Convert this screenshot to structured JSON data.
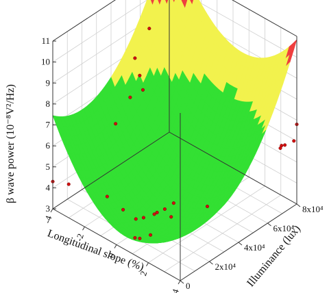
{
  "chart_data": {
    "type": "surface3d",
    "xlabel": "Longitudinal slope (%)",
    "ylabel": "Illuminance (lux)",
    "zlabel": "β wave power  (10⁻⁸V²/Hz)",
    "x_ticks": [
      "-4",
      "-2",
      "0",
      "2",
      "4"
    ],
    "y_ticks": [
      "0",
      "2x10⁴",
      "4x10⁴",
      "6x10⁴",
      "8x10⁴"
    ],
    "z_ticks": [
      "3",
      "4",
      "5",
      "6",
      "7",
      "8",
      "9",
      "10",
      "11"
    ],
    "xlim": [
      -4,
      4
    ],
    "ylim": [
      0,
      80000
    ],
    "zlim": [
      3,
      11
    ],
    "grid": true,
    "surface_colors": {
      "low": "#33e033",
      "mid": "#f2f24d",
      "high": "#ef3f3f"
    },
    "color_bands": [
      {
        "range": [
          3,
          7.3
        ],
        "color": "low"
      },
      {
        "range": [
          7.3,
          10
        ],
        "color": "mid"
      },
      {
        "range": [
          10,
          11
        ],
        "color": "high"
      }
    ],
    "surface_model": {
      "z_min": 3.0,
      "x_center": 0.6,
      "x_coef": 0.18,
      "y_center": 20000,
      "y_coef": 1.6e-09
    },
    "points": [
      {
        "x": -4,
        "y": 0,
        "z": 4.3
      },
      {
        "x": -3,
        "y": 0,
        "z": 4.6
      },
      {
        "x": -1.6,
        "y": 40000,
        "z": 10.8
      },
      {
        "x": -2.5,
        "y": 40000,
        "z": 9.0
      },
      {
        "x": -2.2,
        "y": 40000,
        "z": 8.3
      },
      {
        "x": -2.0,
        "y": 40000,
        "z": 7.7
      },
      {
        "x": -2.8,
        "y": 40000,
        "z": 7.0
      },
      {
        "x": -2.8,
        "y": 30000,
        "z": 6.2
      },
      {
        "x": -1.5,
        "y": 10000,
        "z": 4.2
      },
      {
        "x": -0.5,
        "y": 10000,
        "z": 4.0
      },
      {
        "x": 0.3,
        "y": 10000,
        "z": 3.9
      },
      {
        "x": 0.6,
        "y": 12000,
        "z": 4.0
      },
      {
        "x": 1.0,
        "y": 15000,
        "z": 4.2
      },
      {
        "x": 0.9,
        "y": 18000,
        "z": 4.1
      },
      {
        "x": 1.2,
        "y": 20000,
        "z": 4.3
      },
      {
        "x": 1.3,
        "y": 25000,
        "z": 4.4
      },
      {
        "x": 1.6,
        "y": 20000,
        "z": 4.1
      },
      {
        "x": 0.7,
        "y": 5000,
        "z": 3.4
      },
      {
        "x": 1.0,
        "y": 5000,
        "z": 3.5
      },
      {
        "x": 1.4,
        "y": 8000,
        "z": 3.7
      },
      {
        "x": 2.5,
        "y": 35000,
        "z": 4.3
      },
      {
        "x": 3.5,
        "y": 75000,
        "z": 5.8
      },
      {
        "x": 4.0,
        "y": 78000,
        "z": 6.1
      },
      {
        "x": 3.8,
        "y": 74000,
        "z": 6.0
      },
      {
        "x": 3.7,
        "y": 72000,
        "z": 5.9
      },
      {
        "x": 4.0,
        "y": 80000,
        "z": 6.8
      }
    ]
  }
}
